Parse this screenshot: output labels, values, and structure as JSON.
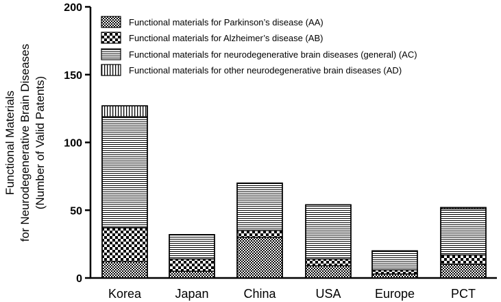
{
  "chart_data": {
    "type": "bar",
    "stacked": true,
    "categories": [
      "Korea",
      "Japan",
      "China",
      "USA",
      "Europe",
      "PCT"
    ],
    "ylabel_lines": [
      "Functional Materials",
      "for Neurodegenerative Brain Diseases",
      "(Number of Valid Patents)"
    ],
    "xlabel": "",
    "title": "",
    "ylim": [
      0,
      200
    ],
    "yticks": [
      0,
      50,
      100,
      150,
      200
    ],
    "legend_position": "top",
    "series": [
      {
        "name": "Functional materials for Parkinson’s disease (AA)",
        "pattern": "checker-fine",
        "values": [
          12,
          5,
          30,
          9,
          3,
          10
        ]
      },
      {
        "name": "Functional materials for Alzheimer’s disease (AB)",
        "pattern": "checker-bold",
        "values": [
          25,
          9,
          5,
          5,
          3,
          7
        ]
      },
      {
        "name": "Functional materials for neurodegenerative brain diseases (general) (AC)",
        "pattern": "horizontal-lines",
        "values": [
          82,
          18,
          35,
          40,
          14,
          34
        ]
      },
      {
        "name": "Functional materials for other neurodegenerative brain diseases (AD)",
        "pattern": "vertical-lines",
        "values": [
          8,
          0,
          0,
          0,
          0,
          1
        ]
      }
    ]
  }
}
